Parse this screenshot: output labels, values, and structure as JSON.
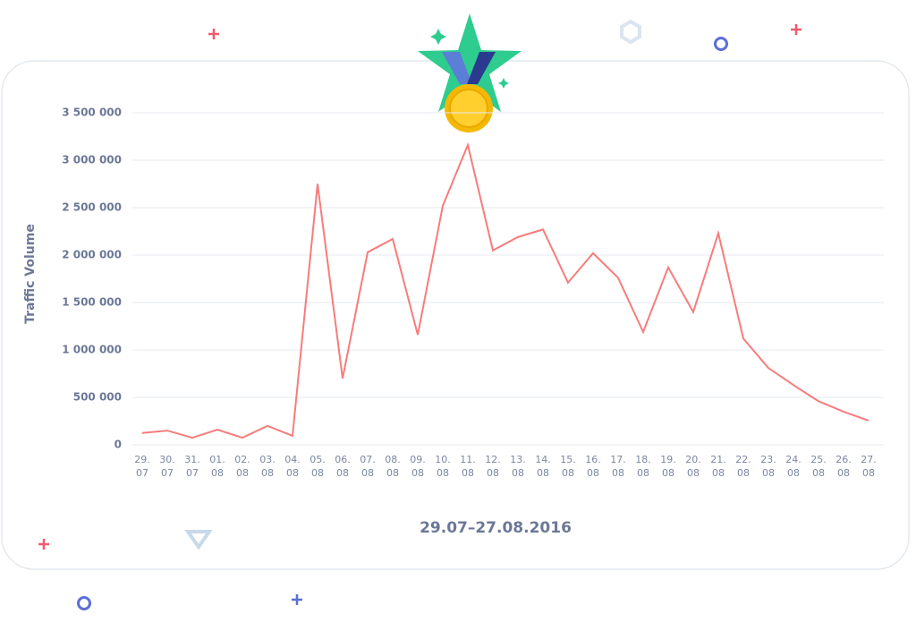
{
  "chart_data": {
    "type": "line",
    "y_label": "Traffic Volume",
    "x_label": "29.07–27.08.2016",
    "categories": [
      "29. 07",
      "30. 07",
      "31. 07",
      "01. 08",
      "02. 08",
      "03. 08",
      "04. 08",
      "05. 08",
      "06. 08",
      "07. 08",
      "08. 08",
      "09. 08",
      "10. 08",
      "11. 08",
      "12. 08",
      "13. 08",
      "14. 08",
      "15. 08",
      "16. 08",
      "17. 08",
      "18. 08",
      "19. 08",
      "20. 08",
      "21. 08",
      "22. 08",
      "23. 08",
      "24. 08",
      "25. 08",
      "26. 08",
      "27. 08"
    ],
    "series": [
      {
        "name": "Traffic Volume",
        "color": "#f77c7c",
        "values": [
          125000,
          150000,
          75000,
          160000,
          75000,
          200000,
          95000,
          2750000,
          700000,
          2030000,
          2170000,
          1160000,
          2520000,
          3160000,
          2050000,
          2190000,
          2270000,
          1710000,
          2020000,
          1760000,
          1190000,
          1870000,
          1400000,
          2230000,
          1120000,
          810000,
          630000,
          460000,
          350000,
          255000
        ]
      }
    ],
    "ylim": [
      0,
      3500000
    ],
    "yticks": [
      0,
      {
        "value": 500000,
        "label": "500 000"
      },
      {
        "value": 1000000,
        "label": "1 000 000"
      },
      {
        "value": 1500000,
        "label": "1 500 000"
      },
      {
        "value": 2000000,
        "label": "2 000 000"
      },
      {
        "value": 2500000,
        "label": "2 500 000"
      },
      {
        "value": 3000000,
        "label": "3 000 000"
      },
      {
        "value": 3500000,
        "label": "3 500 000"
      }
    ],
    "grid": true
  }
}
